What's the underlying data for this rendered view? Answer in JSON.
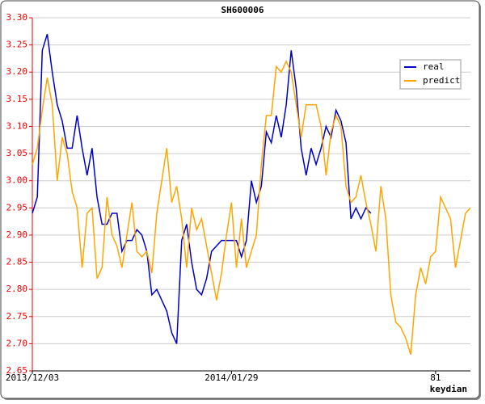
{
  "chart_data": {
    "type": "line",
    "title": "SH600006",
    "xlabel": "keydian",
    "xlim": [
      0,
      88
    ],
    "xticks": [
      {
        "value": 0,
        "label": "2013/12/03"
      },
      {
        "value": 40,
        "label": "2014/01/29"
      },
      81
    ],
    "ylim": [
      2.65,
      3.3
    ],
    "yticks": [
      {
        "value": 2.65,
        "label": "2.65"
      },
      {
        "value": 2.7,
        "label": "2.70"
      },
      2.75,
      {
        "value": 2.8,
        "label": "2.80"
      },
      2.85,
      {
        "value": 2.9,
        "label": "2.90"
      },
      2.95,
      {
        "value": 3.0,
        "label": "3.00"
      },
      3.05,
      {
        "value": 3.1,
        "label": "3.10"
      },
      3.15,
      {
        "value": 3.2,
        "label": "3.20"
      },
      3.25,
      {
        "value": 3.3,
        "label": "3.30"
      }
    ],
    "grid": true,
    "legend": "upper right",
    "series": [
      {
        "name": "real",
        "color": "#0000cc",
        "values": [
          2.94,
          2.97,
          3.24,
          3.27,
          3.2,
          3.14,
          3.11,
          3.06,
          3.06,
          3.12,
          3.06,
          3.01,
          3.06,
          2.97,
          2.92,
          2.92,
          2.94,
          2.94,
          2.87,
          2.89,
          2.89,
          2.91,
          2.9,
          2.87,
          2.79,
          2.8,
          2.78,
          2.76,
          2.72,
          2.7,
          2.89,
          2.92,
          2.85,
          2.8,
          2.79,
          2.82,
          2.87,
          2.88,
          2.89,
          2.89,
          2.89,
          2.89,
          2.86,
          2.89,
          3.0,
          2.96,
          2.99,
          3.09,
          3.07,
          3.12,
          3.08,
          3.14,
          3.24,
          3.17,
          3.06,
          3.01,
          3.06,
          3.03,
          3.06,
          3.1,
          3.08,
          3.13,
          3.11,
          3.07,
          2.93,
          2.95,
          2.93,
          2.95,
          2.94,
          null,
          null,
          null,
          null,
          null,
          null,
          null,
          null,
          null,
          null,
          null,
          null,
          null,
          null,
          null,
          null,
          null,
          null,
          null,
          null,
          null
        ]
      },
      {
        "name": "predict",
        "color": "#ffa500",
        "values": [
          3.03,
          3.06,
          3.13,
          3.19,
          3.14,
          3.0,
          3.08,
          3.05,
          2.98,
          2.95,
          2.84,
          2.94,
          2.95,
          2.82,
          2.84,
          2.97,
          2.9,
          2.88,
          2.84,
          2.9,
          2.96,
          2.87,
          2.86,
          2.87,
          2.83,
          2.94,
          3.0,
          3.06,
          2.96,
          2.99,
          2.93,
          2.84,
          2.95,
          2.91,
          2.93,
          2.88,
          2.83,
          2.78,
          2.83,
          2.9,
          2.96,
          2.84,
          2.93,
          2.84,
          2.87,
          2.9,
          3.03,
          3.12,
          3.12,
          3.21,
          3.2,
          3.22,
          3.2,
          3.14,
          3.08,
          3.14,
          3.14,
          3.14,
          3.1,
          3.01,
          3.09,
          3.12,
          3.1,
          2.99,
          2.96,
          2.97,
          3.01,
          2.96,
          2.92,
          2.87,
          2.99,
          2.93,
          2.79,
          2.74,
          2.73,
          2.71,
          2.68,
          2.79,
          2.84,
          2.81,
          2.86,
          2.87,
          2.97,
          2.95,
          2.93,
          2.84,
          2.89,
          2.94,
          2.95
        ]
      }
    ]
  }
}
